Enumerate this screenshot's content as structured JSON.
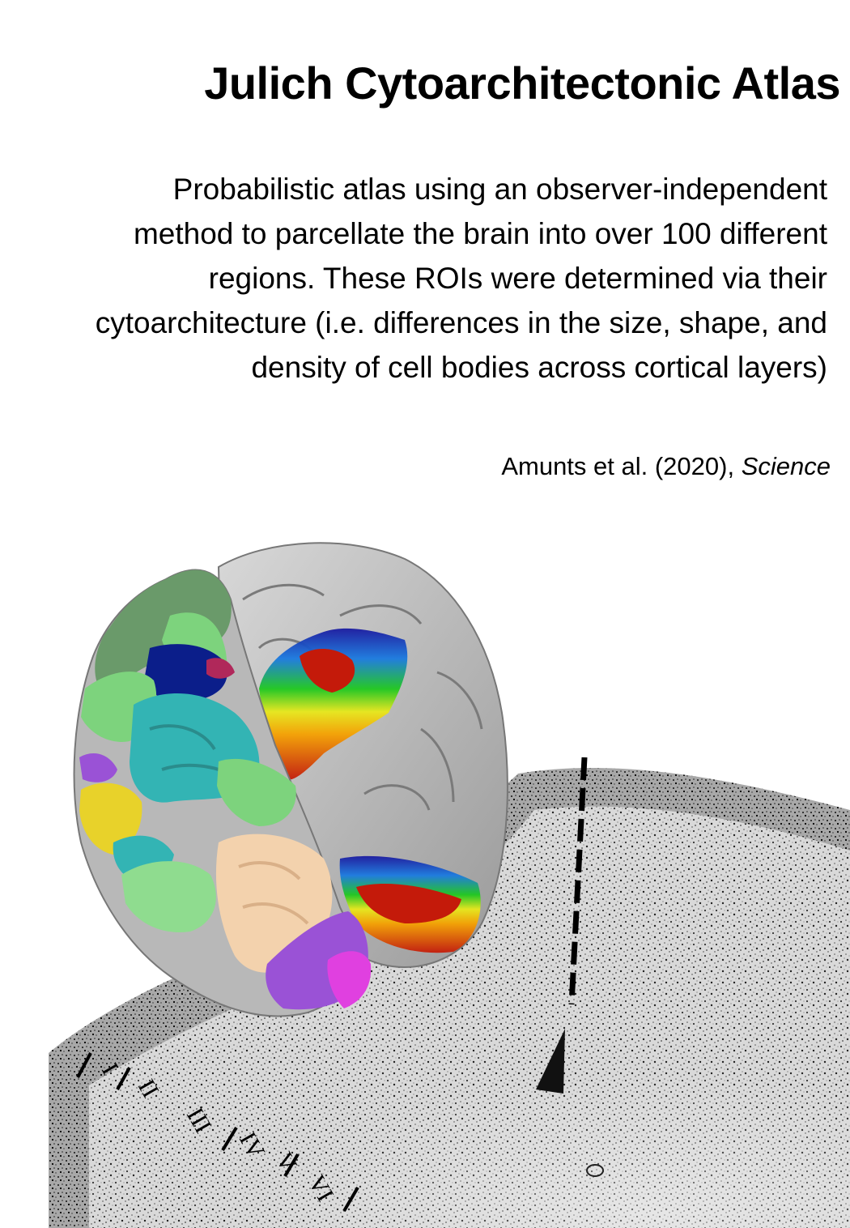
{
  "title": "Julich Cytoarchitectonic Atlas",
  "description_lines": [
    "Probabilistic atlas using an observer-independent",
    "method to parcellate the brain into over 100 different",
    "regions. These ROIs were determined via their",
    "cytoarchitecture (i.e. differences in the size, shape, and",
    "density of cell bodies across cortical  layers)"
  ],
  "citation": {
    "authors_year": "Amunts et al. (2020), ",
    "journal": "Science"
  },
  "figure": {
    "layer_labels": [
      "I",
      "II",
      "III",
      "IV",
      "V",
      "VI"
    ],
    "brain_region_colors": [
      "#7dd37d",
      "#33b4b4",
      "#e8d22a",
      "#9a52d6",
      "#f3d2ad",
      "#0b1e8a",
      "#6a9a6a",
      "#e040e0"
    ],
    "probability_map_colors": [
      "#c41a0a",
      "#f5a000",
      "#e8e81a",
      "#1ec81e",
      "#1a7ae0",
      "#1a1aa0"
    ]
  }
}
